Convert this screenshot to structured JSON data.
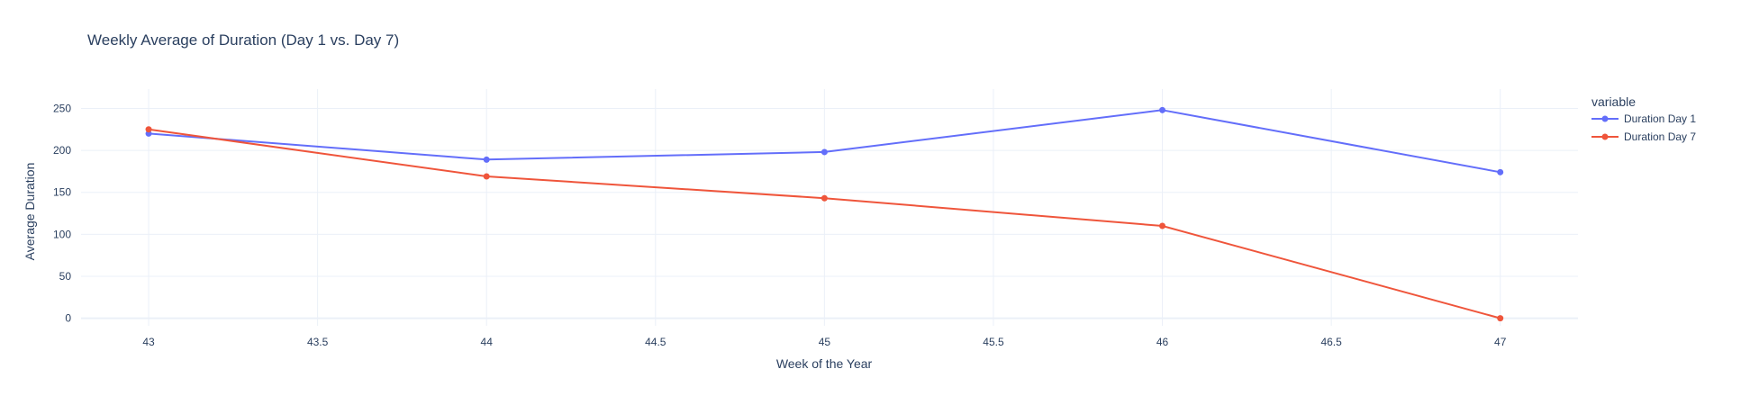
{
  "chart_data": {
    "type": "line",
    "title": "Weekly Average of Duration (Day 1 vs. Day 7)",
    "xlabel": "Week of the Year",
    "ylabel": "Average Duration",
    "x": [
      43,
      44,
      45,
      46,
      47
    ],
    "xlim": [
      42.8,
      47.23
    ],
    "ylim": [
      -9,
      273
    ],
    "xticks": [
      43,
      43.5,
      44,
      44.5,
      45,
      45.5,
      46,
      46.5,
      47
    ],
    "yticks": [
      0,
      50,
      100,
      150,
      200,
      250
    ],
    "grid": true,
    "legend_title": "variable",
    "legend_position": "top-right",
    "series": [
      {
        "name": "Duration Day 1",
        "color": "#636efa",
        "values": [
          220,
          189,
          198,
          248,
          174
        ]
      },
      {
        "name": "Duration Day 7",
        "color": "#ef553b",
        "values": [
          225,
          169,
          143,
          110,
          0
        ]
      }
    ]
  }
}
